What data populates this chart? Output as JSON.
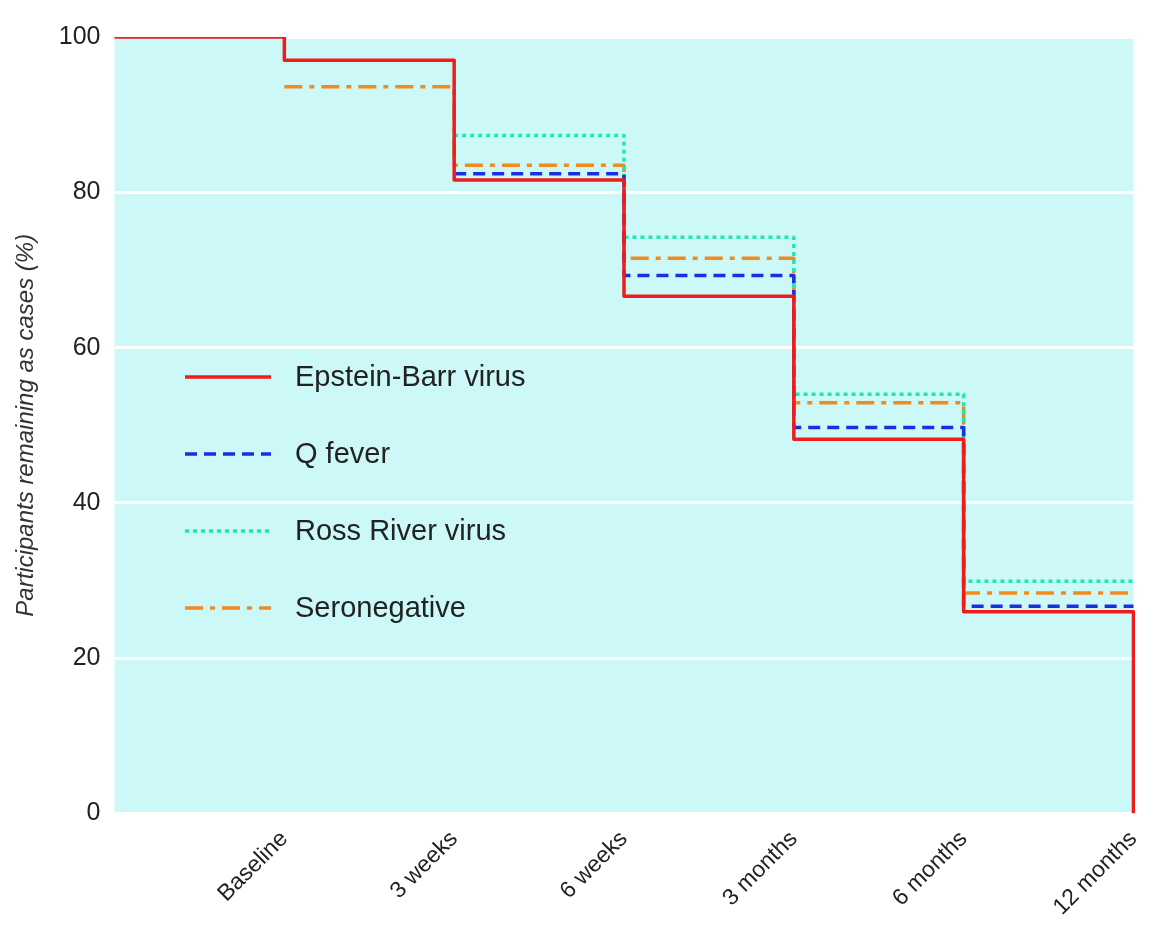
{
  "chart_data": {
    "type": "step",
    "ylabel": "Participants remaining as cases (%)",
    "categories": [
      null,
      "Baseline",
      "3 weeks",
      "6 weeks",
      "3 months",
      "6 months",
      "12 months"
    ],
    "series": [
      {
        "name": "Epstein-Barr virus",
        "color": "#ee1c1c",
        "line_style": "solid",
        "values": [
          100,
          97.0,
          81.6,
          66.6,
          48.2,
          26.0,
          0
        ]
      },
      {
        "name": "Q fever",
        "color": "#1a2fe0",
        "line_style": "dashed",
        "values": [
          null,
          null,
          82.4,
          69.3,
          49.7,
          26.7,
          26.7
        ]
      },
      {
        "name": "Ross River virus",
        "color": "#1ee8b4",
        "line_style": "dotted",
        "values": [
          null,
          null,
          87.3,
          74.2,
          54.0,
          29.9,
          29.9
        ]
      },
      {
        "name": "Seronegative",
        "color": "#f28a1e",
        "line_style": "dashdot",
        "values": [
          null,
          93.6,
          83.5,
          71.5,
          52.9,
          28.4,
          28.4
        ]
      }
    ],
    "ylim": [
      0,
      100
    ],
    "yticks": [
      0,
      20,
      40,
      60,
      80,
      100
    ],
    "grid": "y",
    "legend": "left",
    "marker": "none"
  }
}
